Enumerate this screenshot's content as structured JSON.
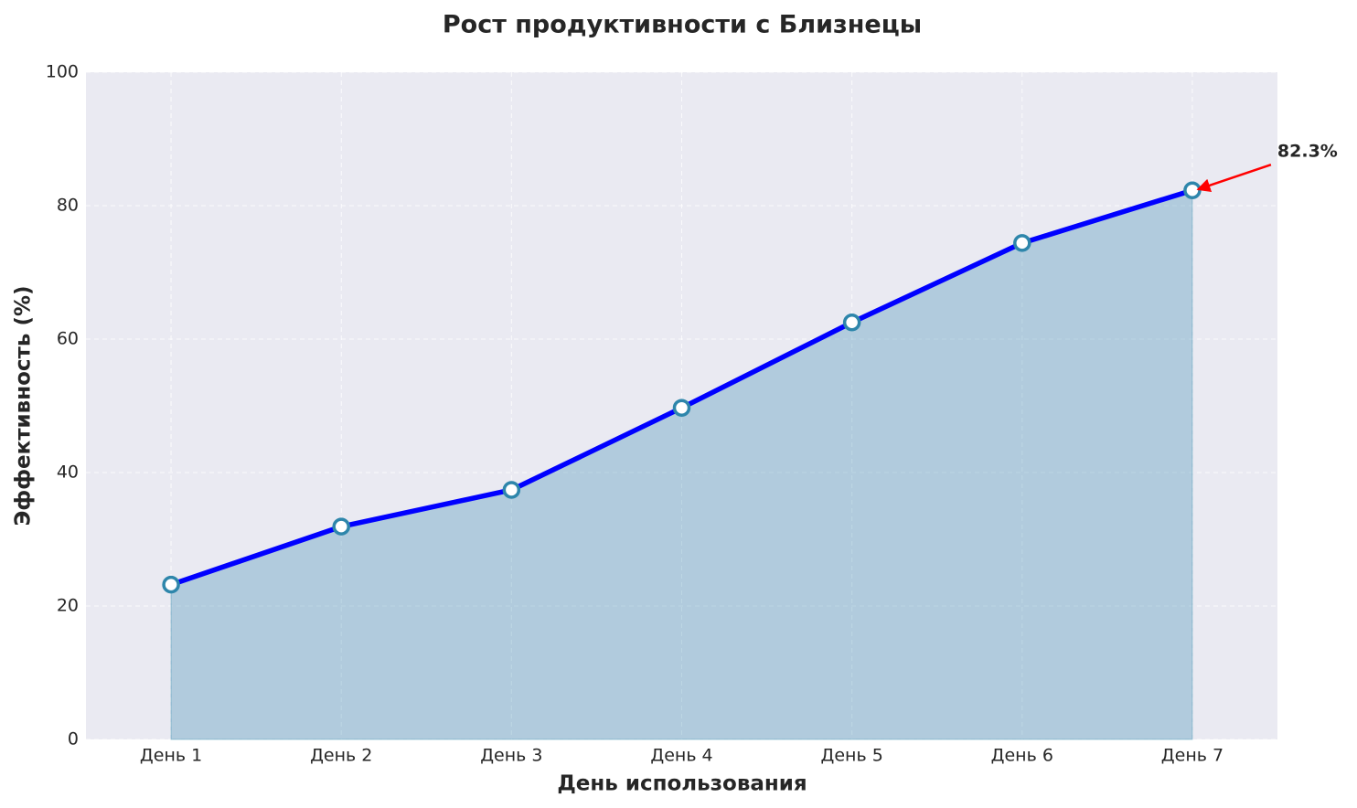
{
  "chart_data": {
    "type": "area",
    "title": "Рост продуктивности с Близнецы",
    "x_label": "День использования",
    "y_label": "Эффективность (%)",
    "categories": [
      "День 1",
      "День 2",
      "День 3",
      "День 4",
      "День 5",
      "День 6",
      "День 7"
    ],
    "values": [
      23.2,
      31.9,
      37.4,
      49.7,
      62.5,
      74.4,
      82.3
    ],
    "value_labels": [
      null,
      null,
      null,
      null,
      null,
      null,
      "82.3%"
    ],
    "line_color": "#0000ff",
    "fill_color": "#2e86ab",
    "marker_color": "#2e86ab",
    "annotation_color": "#ff0000",
    "ylim": [
      0,
      100
    ],
    "yticks": [
      0,
      20,
      40,
      60,
      80,
      100
    ],
    "grid": true
  }
}
